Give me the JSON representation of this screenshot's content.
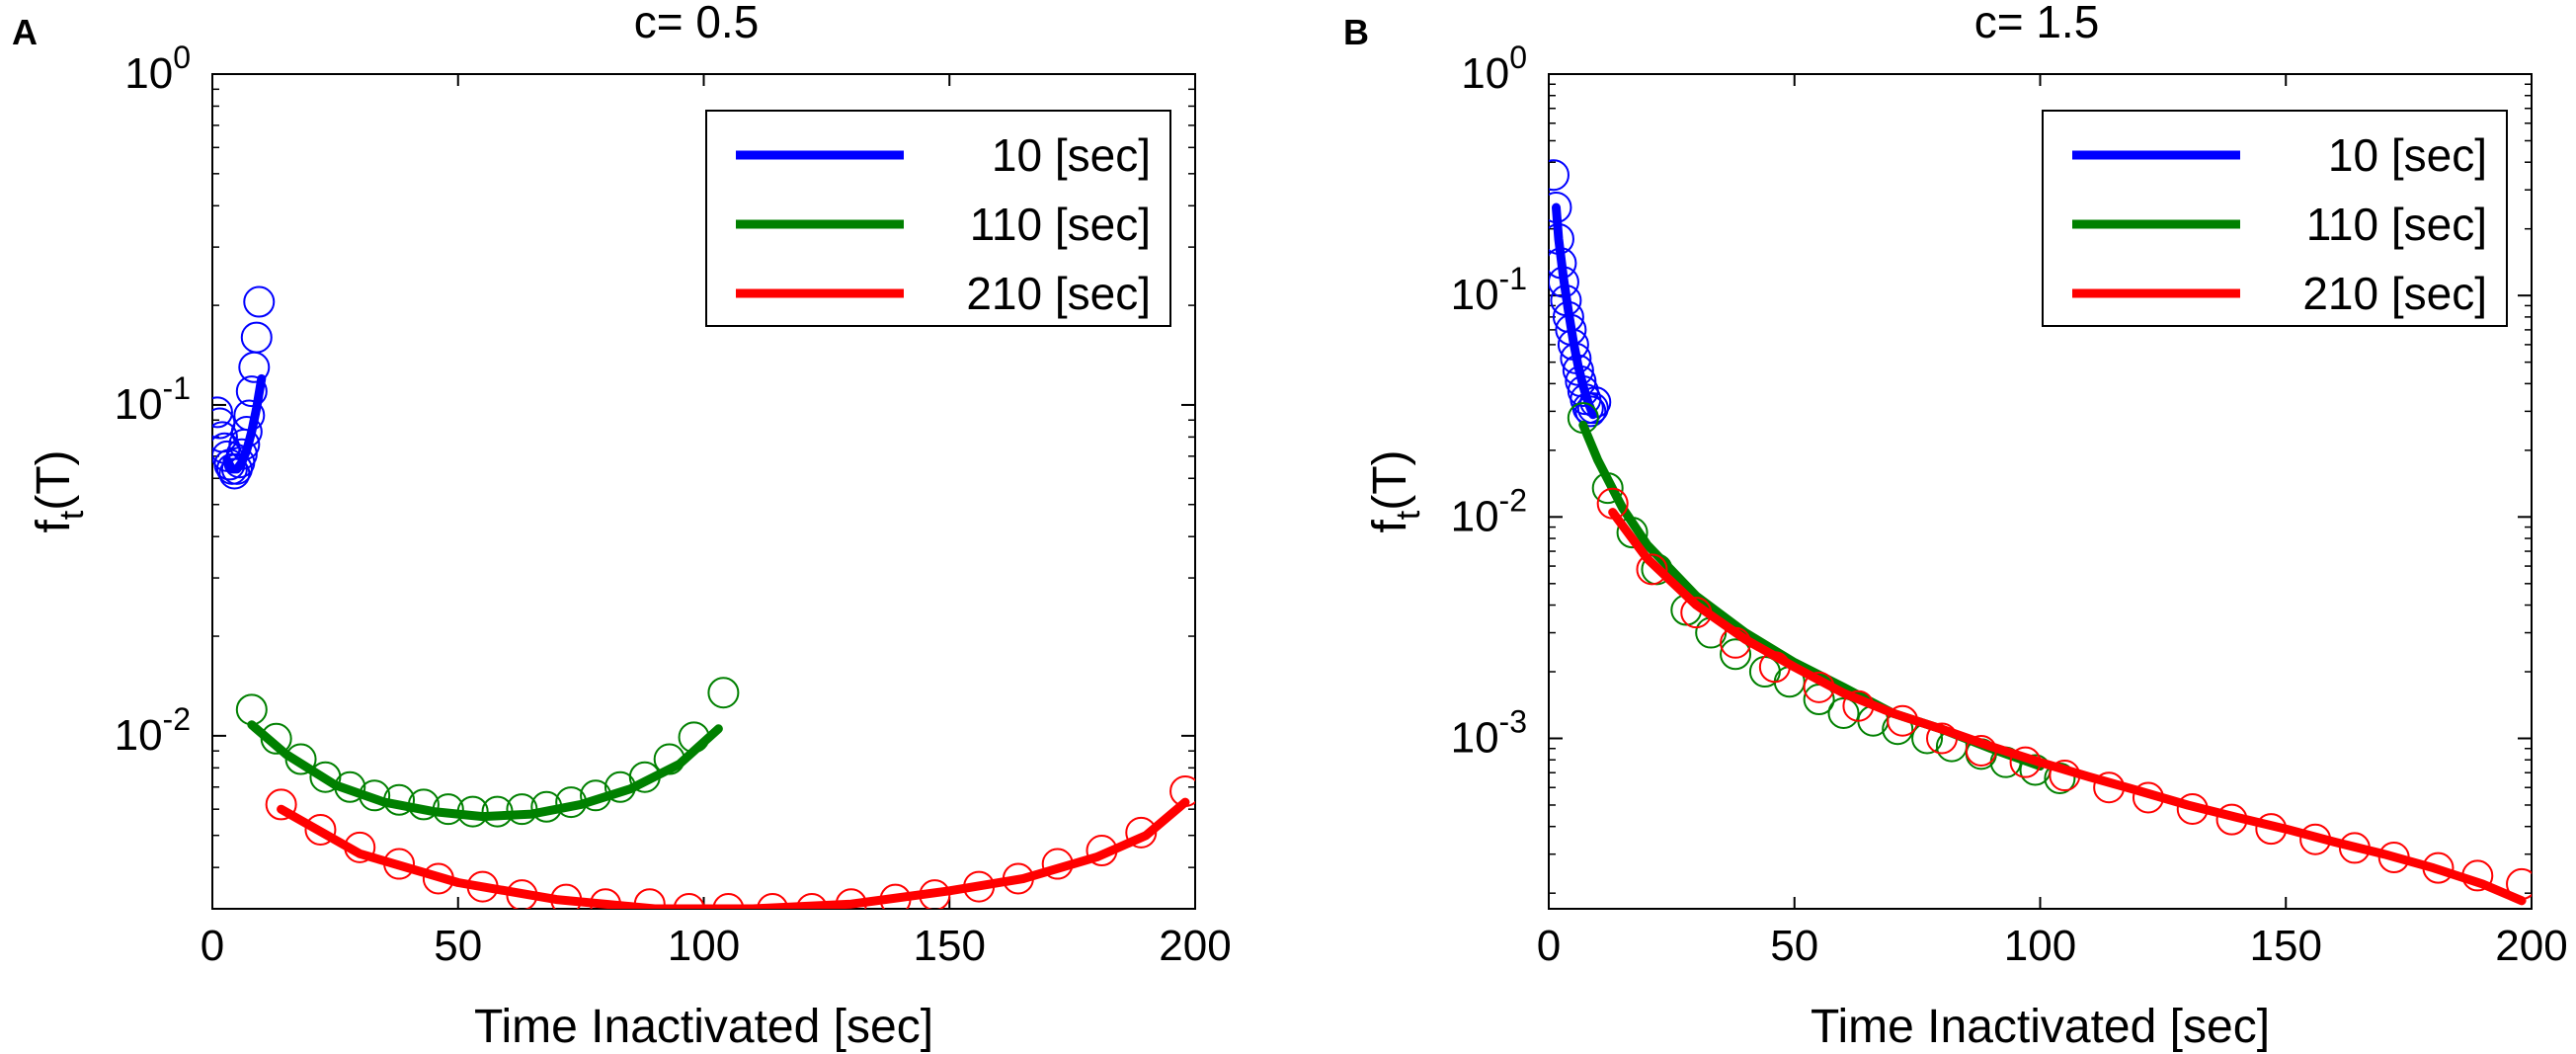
{
  "chart_data": [
    {
      "type": "scatter+line",
      "panel_label": "A",
      "title": "c= 0.5",
      "xlabel": "Time Inactivated [sec]",
      "ylabel_main": "f",
      "ylabel_sub": "t",
      "ylabel_tail": "(T)",
      "xlim": [
        0,
        200
      ],
      "ylim": [
        0.003,
        1
      ],
      "yscale": "log",
      "xticks": [
        0,
        50,
        100,
        150,
        200
      ],
      "yticks": [
        {
          "value": 1,
          "base": "10",
          "exp": "0"
        },
        {
          "value": 0.1,
          "base": "10",
          "exp": "-1"
        },
        {
          "value": 0.01,
          "base": "10",
          "exp": "-2"
        }
      ],
      "legend": {
        "position": "top-right",
        "entries": [
          "10 [sec]",
          "110 [sec]",
          "210 [sec]"
        ]
      },
      "series": [
        {
          "name": "10 [sec]",
          "color": "#0000ff",
          "points_x": [
            1,
            1.5,
            2,
            2.5,
            3,
            3.5,
            4,
            4.5,
            5,
            5.5,
            6,
            6.5,
            7,
            7.5,
            8,
            8.5,
            9,
            9.5
          ],
          "points_y": [
            0.095,
            0.088,
            0.08,
            0.074,
            0.07,
            0.066,
            0.064,
            0.062,
            0.064,
            0.067,
            0.071,
            0.076,
            0.083,
            0.093,
            0.11,
            0.13,
            0.16,
            0.205
          ],
          "line_x": [
            3,
            4,
            5,
            6,
            7,
            8,
            9,
            10
          ],
          "line_y": [
            0.068,
            0.064,
            0.064,
            0.067,
            0.073,
            0.083,
            0.098,
            0.12
          ]
        },
        {
          "name": "110 [sec]",
          "color": "#008000",
          "points_x": [
            8,
            13,
            18,
            23,
            28,
            33,
            38,
            43,
            48,
            53,
            58,
            63,
            68,
            73,
            78,
            83,
            88,
            93,
            98,
            104
          ],
          "points_y": [
            0.012,
            0.0098,
            0.0085,
            0.0075,
            0.007,
            0.0066,
            0.0064,
            0.0062,
            0.006,
            0.0059,
            0.0059,
            0.006,
            0.0061,
            0.0063,
            0.0066,
            0.007,
            0.0075,
            0.0085,
            0.0099,
            0.0135
          ],
          "line_x": [
            8,
            15,
            25,
            35,
            45,
            55,
            65,
            75,
            85,
            95,
            103
          ],
          "line_y": [
            0.0108,
            0.0088,
            0.0071,
            0.0063,
            0.0059,
            0.0057,
            0.0058,
            0.0062,
            0.0069,
            0.0082,
            0.0105
          ]
        },
        {
          "name": "210 [sec]",
          "color": "#ff0000",
          "points_x": [
            14,
            22,
            30,
            38,
            46,
            55,
            63,
            72,
            80,
            89,
            97,
            105,
            114,
            122,
            130,
            139,
            147,
            156,
            164,
            172,
            181,
            189,
            198
          ],
          "points_y": [
            0.0062,
            0.0052,
            0.0046,
            0.0041,
            0.0037,
            0.0035,
            0.0033,
            0.0032,
            0.0031,
            0.0031,
            0.003,
            0.003,
            0.003,
            0.003,
            0.0031,
            0.0032,
            0.0033,
            0.0035,
            0.0037,
            0.0041,
            0.0045,
            0.0051,
            0.0068
          ],
          "line_x": [
            14,
            30,
            50,
            70,
            90,
            110,
            130,
            150,
            165,
            180,
            190,
            198
          ],
          "line_y": [
            0.006,
            0.0044,
            0.0036,
            0.0032,
            0.003,
            0.003,
            0.0031,
            0.0034,
            0.0037,
            0.0043,
            0.005,
            0.0063
          ]
        }
      ]
    },
    {
      "type": "scatter+line",
      "panel_label": "B",
      "title": "c= 1.5",
      "xlabel": "Time Inactivated [sec]",
      "ylabel_main": "f",
      "ylabel_sub": "t",
      "ylabel_tail": "(T)",
      "xlim": [
        0,
        200
      ],
      "ylim": [
        0.00017,
        1
      ],
      "yscale": "log",
      "xticks": [
        0,
        50,
        100,
        150,
        200
      ],
      "yticks": [
        {
          "value": 1,
          "base": "10",
          "exp": "0"
        },
        {
          "value": 0.1,
          "base": "10",
          "exp": "-1"
        },
        {
          "value": 0.01,
          "base": "10",
          "exp": "-2"
        },
        {
          "value": 0.001,
          "base": "10",
          "exp": "-3"
        }
      ],
      "legend": {
        "position": "top-right",
        "entries": [
          "10 [sec]",
          "110 [sec]",
          "210 [sec]"
        ]
      },
      "series": [
        {
          "name": "10 [sec]",
          "color": "#0000ff",
          "points_x": [
            1,
            1.5,
            2,
            2.5,
            3,
            3.5,
            4,
            4.5,
            5,
            5.5,
            6,
            6.5,
            7,
            7.5,
            8,
            8.5,
            9,
            9.5
          ],
          "points_y": [
            0.35,
            0.25,
            0.18,
            0.14,
            0.115,
            0.095,
            0.08,
            0.07,
            0.06,
            0.052,
            0.046,
            0.041,
            0.037,
            0.034,
            0.031,
            0.03,
            0.031,
            0.033
          ],
          "line_x": [
            1.5,
            2,
            3,
            4,
            5,
            6,
            7,
            8,
            9
          ],
          "line_y": [
            0.25,
            0.18,
            0.12,
            0.085,
            0.062,
            0.048,
            0.039,
            0.033,
            0.029
          ]
        },
        {
          "name": "110 [sec]",
          "color": "#008000",
          "points_x": [
            7,
            12,
            17,
            22,
            28,
            33,
            38,
            44,
            49,
            55,
            60,
            66,
            71,
            77,
            82,
            88,
            93,
            99,
            104
          ],
          "points_y": [
            0.028,
            0.0135,
            0.0085,
            0.0058,
            0.0038,
            0.003,
            0.0024,
            0.002,
            0.0018,
            0.0015,
            0.0013,
            0.0012,
            0.0011,
            0.001,
            0.00092,
            0.00085,
            0.00078,
            0.00072,
            0.00066
          ],
          "line_x": [
            7,
            10,
            15,
            20,
            30,
            40,
            50,
            60,
            70,
            80,
            90,
            100
          ],
          "line_y": [
            0.026,
            0.018,
            0.011,
            0.0075,
            0.0044,
            0.003,
            0.0022,
            0.0017,
            0.0013,
            0.0011,
            0.0009,
            0.00075
          ]
        },
        {
          "name": "210 [sec]",
          "color": "#ff0000",
          "points_x": [
            13,
            21,
            30,
            38,
            46,
            55,
            63,
            72,
            80,
            88,
            97,
            105,
            114,
            122,
            131,
            139,
            147,
            156,
            164,
            172,
            181,
            189,
            198
          ],
          "points_y": [
            0.0115,
            0.0058,
            0.0037,
            0.0027,
            0.0021,
            0.0017,
            0.0014,
            0.0012,
            0.001,
            0.00088,
            0.00078,
            0.00068,
            0.0006,
            0.00054,
            0.00048,
            0.00043,
            0.00039,
            0.00035,
            0.00032,
            0.00029,
            0.00026,
            0.00024,
            0.00022
          ],
          "line_x": [
            13,
            20,
            30,
            40,
            50,
            60,
            70,
            80,
            90,
            100,
            110,
            120,
            130,
            140,
            150,
            160,
            170,
            180,
            190,
            198
          ],
          "line_y": [
            0.0105,
            0.0065,
            0.004,
            0.0028,
            0.0021,
            0.0016,
            0.0013,
            0.0011,
            0.00092,
            0.00078,
            0.00067,
            0.00058,
            0.0005,
            0.00044,
            0.00039,
            0.00034,
            0.0003,
            0.00026,
            0.00022,
            0.000185
          ]
        }
      ]
    }
  ]
}
